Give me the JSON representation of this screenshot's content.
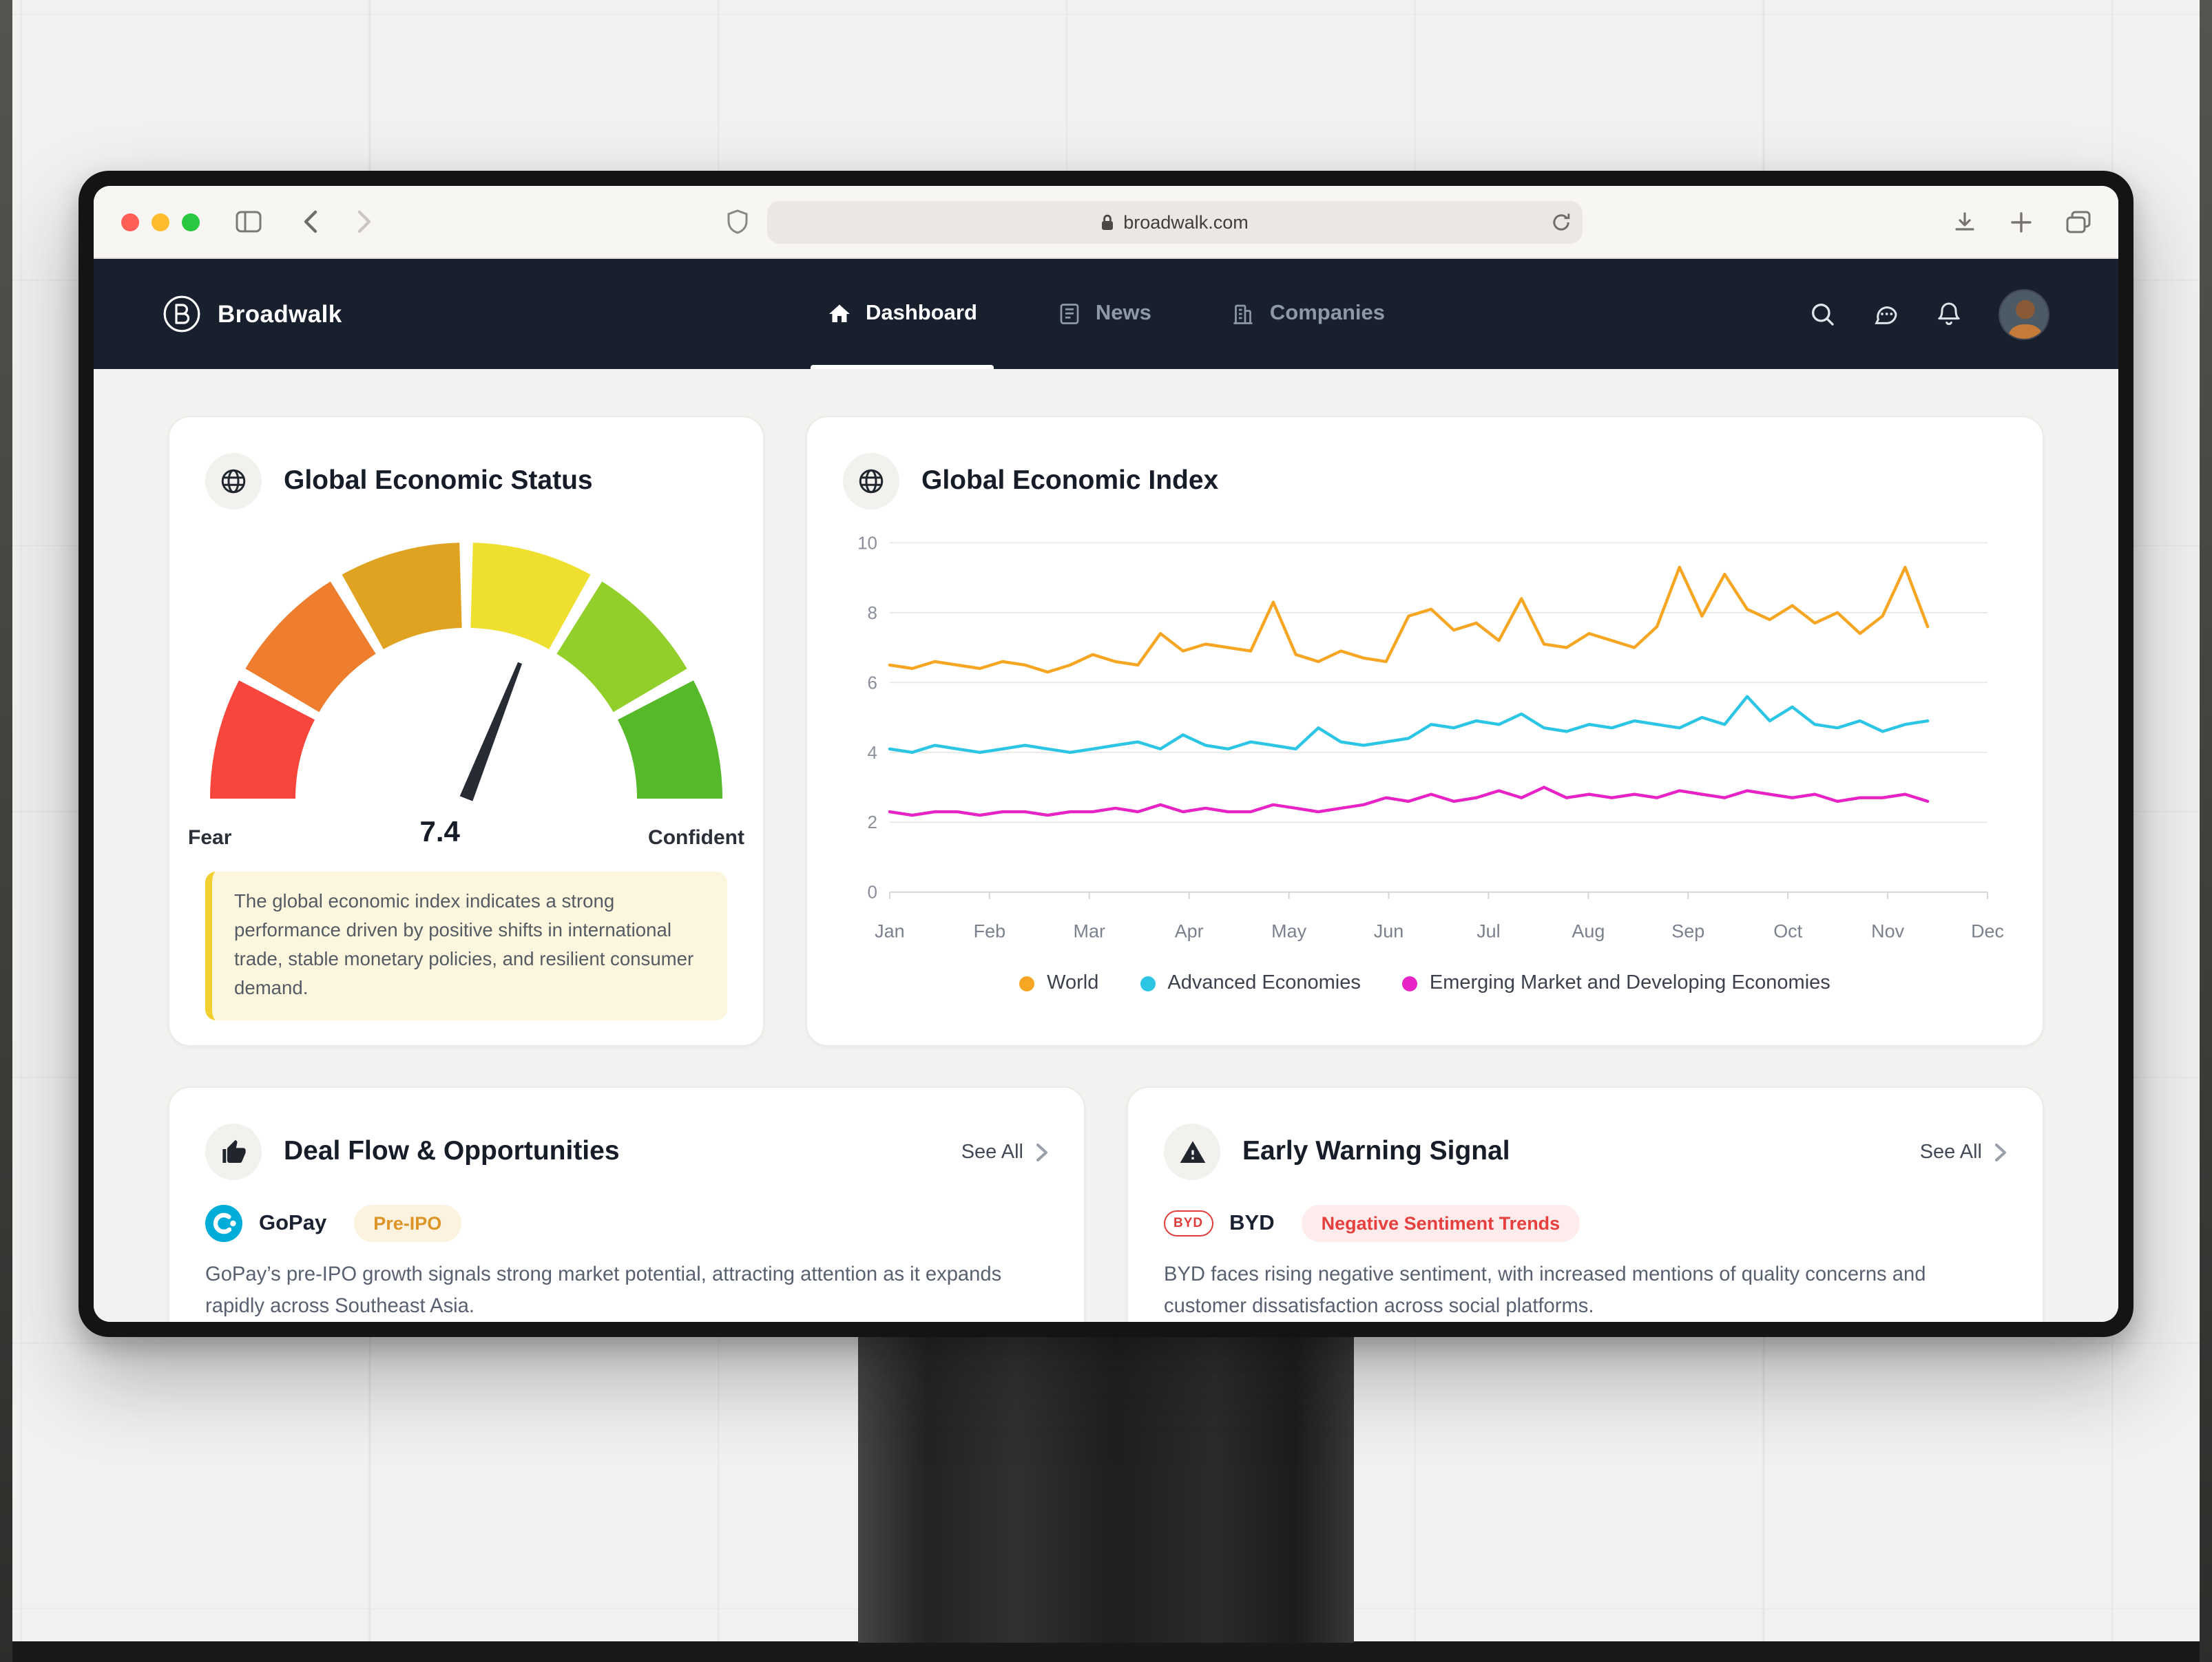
{
  "browser": {
    "url": "broadwalk.com"
  },
  "navbar": {
    "brand": "Broadwalk",
    "items": [
      {
        "label": "Dashboard",
        "active": true
      },
      {
        "label": "News",
        "active": false
      },
      {
        "label": "Companies",
        "active": false
      }
    ]
  },
  "status_card": {
    "title": "Global Economic Status",
    "gauge": {
      "value": 7.4,
      "value_label": "7.4",
      "min_label": "Fear",
      "max_label": "Confident",
      "segment_colors": [
        "#f8463c",
        "#ee7d2e",
        "#e0a321",
        "#efdf2e",
        "#93cf2b",
        "#55b92a"
      ],
      "needle_color": "#272c34"
    },
    "note": "The global economic index indicates a strong performance driven by positive shifts in international trade, stable monetary policies, and resilient consumer demand.",
    "note_colors": {
      "bg": "#fbf6dd",
      "border": "#f0cf2e",
      "text": "#555b63"
    }
  },
  "index_card": {
    "title": "Global Economic Index"
  },
  "chart_data": {
    "type": "line",
    "title": "Global Economic Index",
    "x_labels": [
      "Jan",
      "Feb",
      "Mar",
      "Apr",
      "May",
      "Jun",
      "Jul",
      "Aug",
      "Sep",
      "Oct",
      "Nov",
      "Dec"
    ],
    "x_extent_months": 10.4,
    "ylim": [
      0,
      10
    ],
    "yticks": [
      0,
      2,
      4,
      6,
      8,
      10
    ],
    "grid": true,
    "legend_position": "bottom",
    "series": [
      {
        "name": "World",
        "color": "#f6a622",
        "values": [
          6.5,
          6.4,
          6.6,
          6.5,
          6.4,
          6.6,
          6.5,
          6.3,
          6.5,
          6.8,
          6.6,
          6.5,
          7.4,
          6.9,
          7.1,
          7.0,
          6.9,
          8.3,
          6.8,
          6.6,
          6.9,
          6.7,
          6.6,
          7.9,
          8.1,
          7.5,
          7.7,
          7.2,
          8.4,
          7.1,
          7.0,
          7.4,
          7.2,
          7.0,
          7.6,
          9.3,
          7.9,
          9.1,
          8.1,
          7.8,
          8.2,
          7.7,
          8.0,
          7.4,
          7.9,
          9.3,
          7.6
        ]
      },
      {
        "name": "Advanced Economies",
        "color": "#2cc5e4",
        "values": [
          4.1,
          4.0,
          4.2,
          4.1,
          4.0,
          4.1,
          4.2,
          4.1,
          4.0,
          4.1,
          4.2,
          4.3,
          4.1,
          4.5,
          4.2,
          4.1,
          4.3,
          4.2,
          4.1,
          4.7,
          4.3,
          4.2,
          4.3,
          4.4,
          4.8,
          4.7,
          4.9,
          4.8,
          5.1,
          4.7,
          4.6,
          4.8,
          4.7,
          4.9,
          4.8,
          4.7,
          5.0,
          4.8,
          5.6,
          4.9,
          5.3,
          4.8,
          4.7,
          4.9,
          4.6,
          4.8,
          4.9
        ]
      },
      {
        "name": "Emerging Market and Developing Economies",
        "color": "#e723c6",
        "values": [
          2.3,
          2.2,
          2.3,
          2.3,
          2.2,
          2.3,
          2.3,
          2.2,
          2.3,
          2.3,
          2.4,
          2.3,
          2.5,
          2.3,
          2.4,
          2.3,
          2.3,
          2.5,
          2.4,
          2.3,
          2.4,
          2.5,
          2.7,
          2.6,
          2.8,
          2.6,
          2.7,
          2.9,
          2.7,
          3.0,
          2.7,
          2.8,
          2.7,
          2.8,
          2.7,
          2.9,
          2.8,
          2.7,
          2.9,
          2.8,
          2.7,
          2.8,
          2.6,
          2.7,
          2.7,
          2.8,
          2.6
        ]
      }
    ]
  },
  "deals_card": {
    "title": "Deal Flow & Opportunities",
    "see_all": "See All",
    "company": "GoPay",
    "badge": "Pre-IPO",
    "badge_colors": {
      "text": "#dd9426",
      "bg": "#fbf3e0"
    },
    "description": "GoPay’s pre-IPO growth signals strong market potential, attracting attention as it expands rapidly across Southeast Asia."
  },
  "warning_card": {
    "title": "Early Warning Signal",
    "see_all": "See All",
    "company": "BYD",
    "company_logo_text": "BYD",
    "badge": "Negative Sentiment Trends",
    "badge_colors": {
      "text": "#e5403d",
      "bg": "#fdeceb"
    },
    "description": "BYD faces rising negative sentiment, with increased mentions of quality concerns and customer dissatisfaction across social platforms."
  }
}
